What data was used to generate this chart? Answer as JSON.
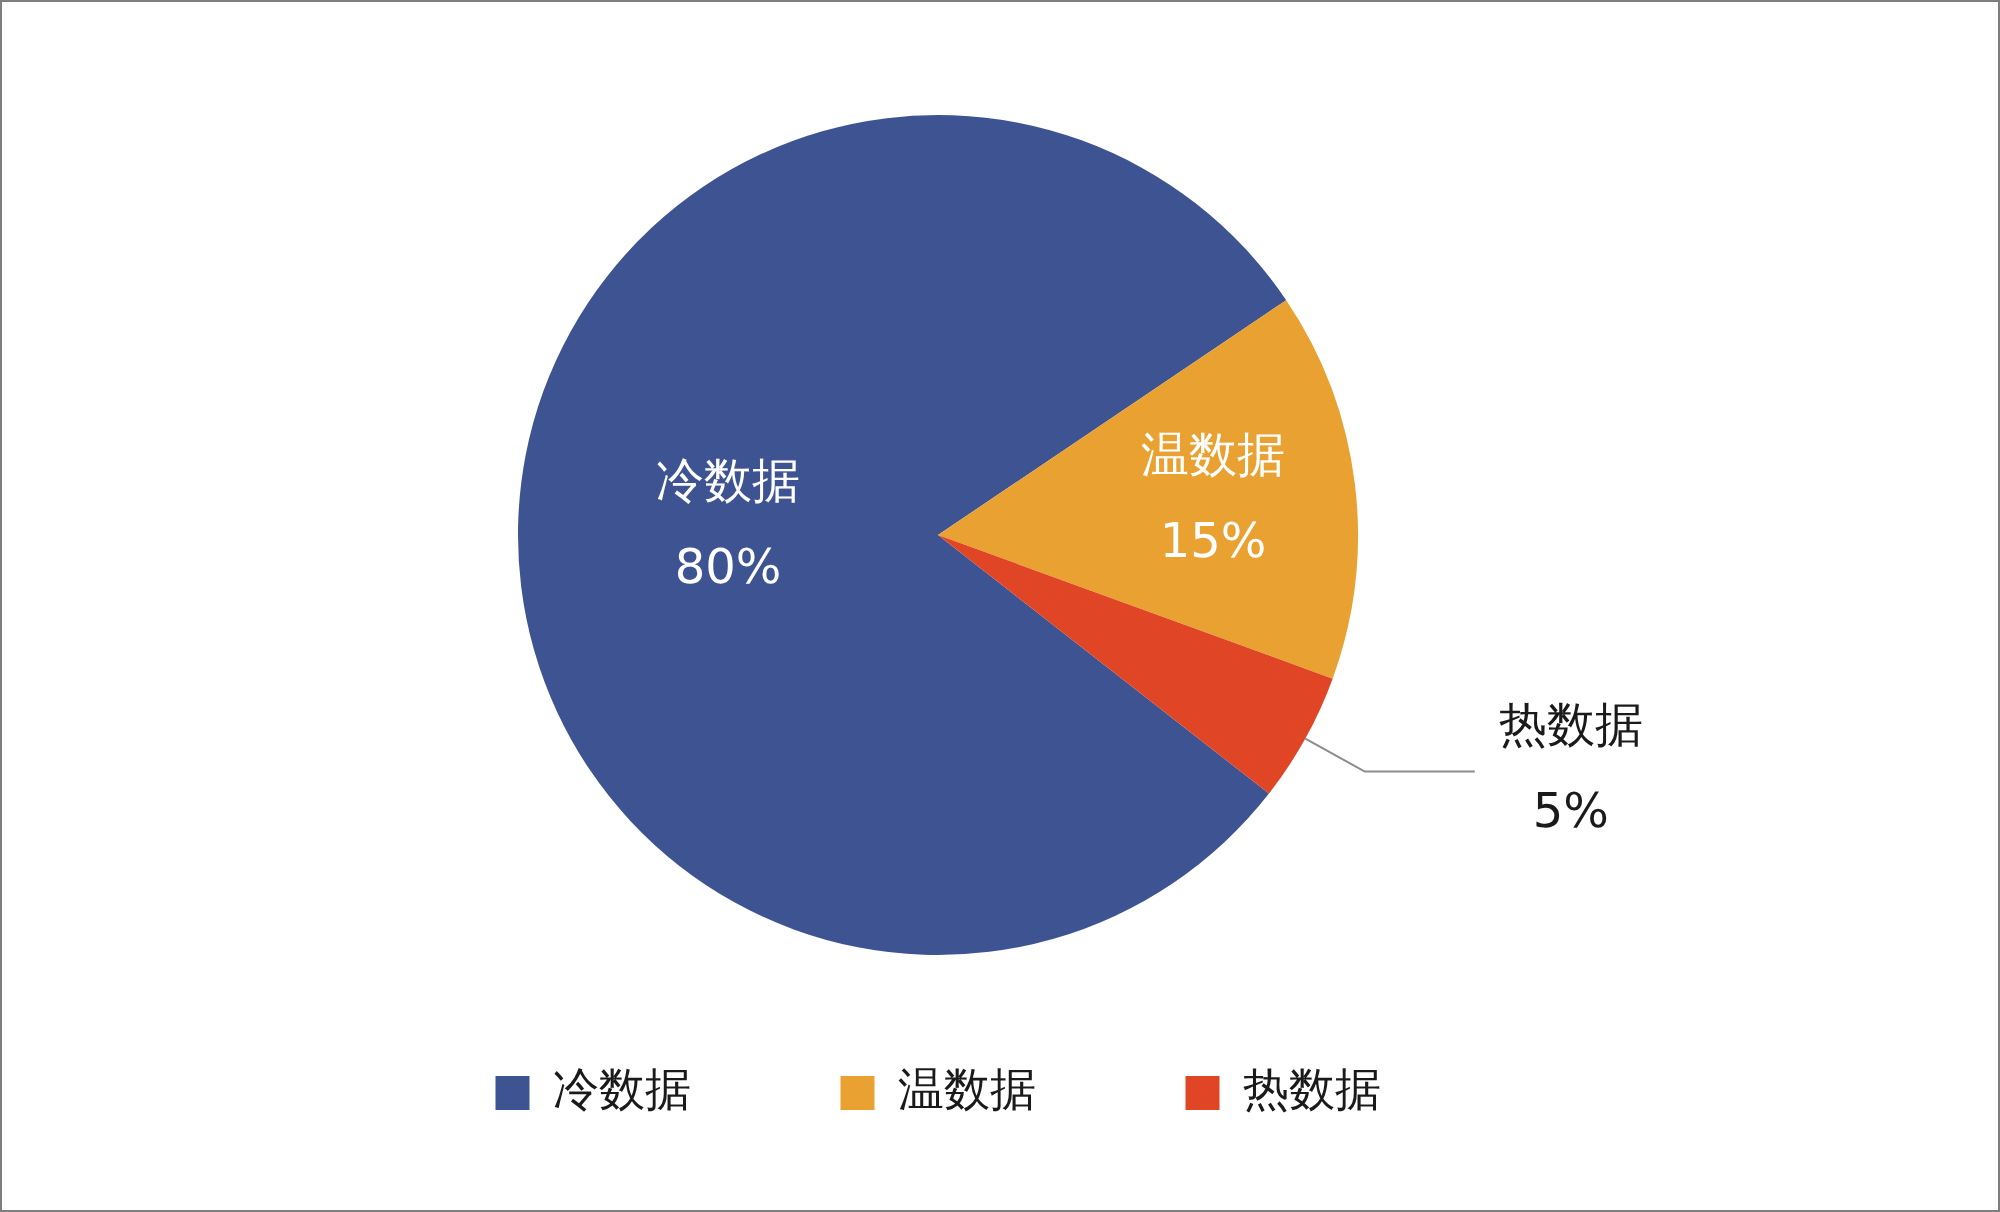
{
  "chart_data": {
    "type": "pie",
    "categories": [
      "冷数据",
      "温数据",
      "热数据"
    ],
    "values": [
      80,
      15,
      5
    ],
    "colors": [
      "#3e5391",
      "#e9a232",
      "#e04625"
    ],
    "value_labels": [
      "80%",
      "15%",
      "5%"
    ],
    "legend": "bottom"
  }
}
